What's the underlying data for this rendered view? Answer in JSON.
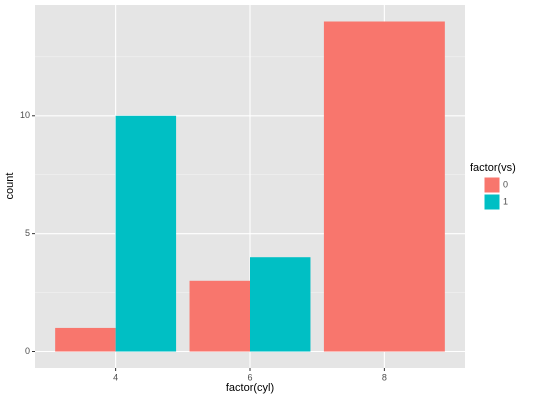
{
  "chart_data": {
    "type": "bar",
    "x_label": "factor(cyl)",
    "y_label": "count",
    "categories": [
      "4",
      "6",
      "8"
    ],
    "series": [
      {
        "name": "0",
        "color": "#f8766d",
        "values": [
          1,
          3,
          14
        ]
      },
      {
        "name": "1",
        "color": "#00bfc4",
        "values": [
          10,
          4,
          null
        ]
      }
    ],
    "legend_title": "factor(vs)",
    "legend": "right",
    "ylim": [
      -0.7,
      14.7
    ],
    "yticks": [
      0,
      5,
      10
    ],
    "y_minor_grid": [
      2.5,
      7.5,
      12.5
    ],
    "grid": true
  }
}
